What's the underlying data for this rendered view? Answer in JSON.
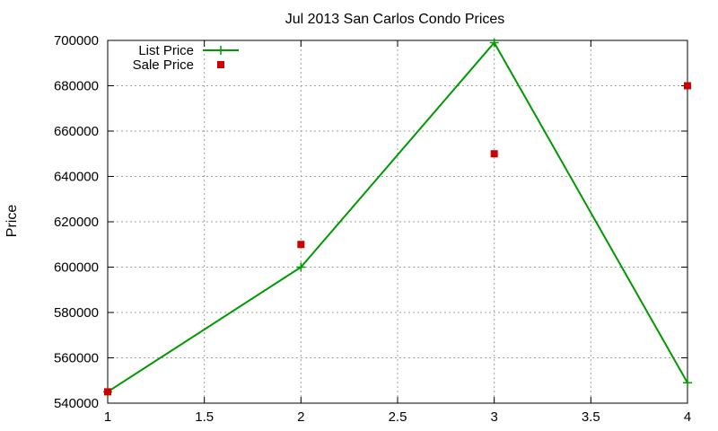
{
  "chart_data": {
    "type": "line",
    "title": "Jul 2013 San Carlos Condo Prices",
    "xlabel": "",
    "ylabel": "Price",
    "xlim": [
      1,
      4
    ],
    "ylim": [
      540000,
      700000
    ],
    "x_ticks": [
      1,
      1.5,
      2,
      2.5,
      3,
      3.5,
      4
    ],
    "y_ticks": [
      540000,
      560000,
      580000,
      600000,
      620000,
      640000,
      660000,
      680000,
      700000
    ],
    "grid": true,
    "legend_position": "top-left",
    "series": [
      {
        "name": "List Price",
        "style": "line-with-plus-markers",
        "color": "#009900",
        "x": [
          1,
          2,
          3,
          4
        ],
        "values": [
          545000,
          600000,
          699000,
          549000
        ]
      },
      {
        "name": "Sale Price",
        "style": "square-markers",
        "color": "#cc0000",
        "x": [
          1,
          2,
          3,
          4
        ],
        "values": [
          545000,
          610000,
          650000,
          680000
        ]
      }
    ]
  }
}
